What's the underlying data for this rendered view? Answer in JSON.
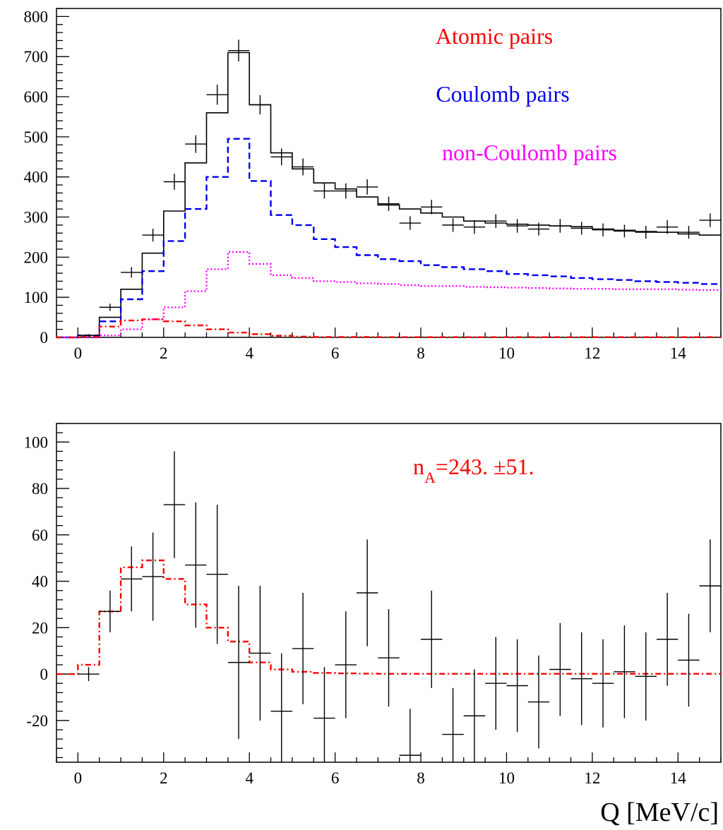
{
  "chart_data": [
    {
      "type": "histogram",
      "xlim": [
        -0.5,
        15
      ],
      "ylim": [
        0,
        820
      ],
      "xticks": [
        0,
        2,
        4,
        6,
        8,
        10,
        12,
        14
      ],
      "yticks": [
        0,
        100,
        200,
        300,
        400,
        500,
        600,
        700,
        800
      ],
      "grid": false,
      "legend_placement": "top-right",
      "bin_edges": [
        -0.5,
        0,
        0.5,
        1,
        1.5,
        2,
        2.5,
        3,
        3.5,
        4,
        4.5,
        5,
        5.5,
        6,
        6.5,
        7,
        7.5,
        8,
        8.5,
        9,
        9.5,
        10,
        10.5,
        11,
        11.5,
        12,
        12.5,
        13,
        13.5,
        14,
        14.5,
        15
      ],
      "series": [
        {
          "role": "total-fit",
          "color": "#000000",
          "style": "solid-step",
          "values": [
            0,
            5,
            50,
            120,
            210,
            315,
            435,
            560,
            710,
            580,
            460,
            420,
            385,
            370,
            350,
            330,
            320,
            310,
            300,
            290,
            285,
            282,
            280,
            278,
            276,
            270,
            267,
            264,
            262,
            258,
            255
          ]
        },
        {
          "name": "Coulomb pairs",
          "color": "#0000ee",
          "style": "dashed-step",
          "values": [
            0,
            5,
            40,
            95,
            165,
            240,
            320,
            400,
            495,
            390,
            305,
            280,
            245,
            225,
            205,
            195,
            190,
            180,
            175,
            170,
            165,
            158,
            155,
            152,
            148,
            145,
            143,
            140,
            138,
            136,
            133
          ]
        },
        {
          "name": "non-Coulomb pairs",
          "color": "#ff00ff",
          "style": "dotted-step",
          "values": [
            0,
            0,
            5,
            20,
            45,
            75,
            115,
            170,
            213,
            183,
            155,
            148,
            140,
            138,
            135,
            133,
            130,
            128,
            128,
            126,
            125,
            124,
            123,
            122,
            121,
            121,
            120,
            120,
            120,
            119,
            118
          ]
        },
        {
          "name": "Atomic pairs",
          "color": "#ff0000",
          "style": "dashdot-step",
          "values": [
            0,
            3,
            27,
            42,
            45,
            40,
            30,
            20,
            12,
            8,
            4,
            2,
            1,
            1,
            1,
            0.5,
            0.5,
            0.5,
            0.5,
            0.5,
            0.5,
            0.5,
            0.5,
            0.5,
            0.5,
            0.5,
            0.5,
            0.5,
            0.5,
            0.5,
            0.5
          ]
        }
      ],
      "data_points": {
        "color": "#000000",
        "x": [
          0.25,
          0.75,
          1.25,
          1.75,
          2.25,
          2.75,
          3.25,
          3.75,
          4.25,
          4.75,
          5.25,
          5.75,
          6.25,
          6.75,
          7.25,
          7.75,
          8.25,
          8.75,
          9.25,
          9.75,
          10.25,
          10.75,
          11.25,
          11.75,
          12.25,
          12.75,
          13.25,
          13.75,
          14.25,
          14.75
        ],
        "y": [
          5,
          75,
          162,
          255,
          388,
          482,
          605,
          715,
          580,
          450,
          425,
          365,
          365,
          375,
          333,
          285,
          325,
          280,
          275,
          290,
          278,
          270,
          278,
          272,
          268,
          265,
          262,
          275,
          262,
          292
        ],
        "err": [
          3,
          9,
          13,
          16,
          20,
          22,
          25,
          27,
          24,
          21,
          21,
          19,
          19,
          19,
          18,
          17,
          18,
          17,
          17,
          17,
          17,
          16,
          17,
          16,
          16,
          16,
          16,
          17,
          16,
          17
        ]
      }
    },
    {
      "type": "histogram",
      "xlim": [
        -0.5,
        15
      ],
      "ylim": [
        -38,
        108
      ],
      "xticks": [
        0,
        2,
        4,
        6,
        8,
        10,
        12,
        14
      ],
      "yticks": [
        -20,
        0,
        20,
        40,
        60,
        80,
        100
      ],
      "grid": false,
      "bin_edges": [
        -0.5,
        0,
        0.5,
        1,
        1.5,
        2,
        2.5,
        3,
        3.5,
        4,
        4.5,
        5,
        5.5,
        6,
        6.5,
        7,
        7.5,
        8,
        8.5,
        9,
        9.5,
        10,
        10.5,
        11,
        11.5,
        12,
        12.5,
        13,
        13.5,
        14,
        14.5,
        15
      ],
      "series": [
        {
          "role": "atomic-fit",
          "color": "#ff0000",
          "style": "dashdot-step",
          "values": [
            0,
            4,
            27,
            46,
            49,
            41,
            30,
            20,
            14,
            5,
            2,
            1,
            0.5,
            0.3,
            0.2,
            0.1,
            0.1,
            0.1,
            0.1,
            0.1,
            0.1,
            0.1,
            0.1,
            0.1,
            0.1,
            0.1,
            0.1,
            0.1,
            0.1,
            0.1,
            0.1
          ]
        }
      ],
      "data_points": {
        "color": "#000000",
        "x": [
          0.25,
          0.75,
          1.25,
          1.75,
          2.25,
          2.75,
          3.25,
          3.75,
          4.25,
          4.75,
          5.25,
          5.75,
          6.25,
          6.75,
          7.25,
          7.75,
          8.25,
          8.75,
          9.25,
          9.75,
          10.25,
          10.75,
          11.25,
          11.75,
          12.25,
          12.75,
          13.25,
          13.75,
          14.25,
          14.75
        ],
        "y": [
          0,
          27,
          41,
          42,
          73,
          47,
          43,
          5,
          9,
          -16,
          11,
          -19,
          4,
          35,
          7,
          -35,
          15,
          -26,
          -18,
          -4,
          -5,
          -12,
          2,
          -2,
          -4,
          1,
          -1,
          15,
          6,
          38
        ],
        "err": [
          3,
          9,
          14,
          19,
          23,
          27,
          30,
          33,
          29,
          25,
          24,
          22,
          23,
          23,
          21,
          20,
          21,
          20,
          20,
          20,
          20,
          20,
          20,
          20,
          19,
          20,
          19,
          20,
          20,
          20
        ]
      }
    }
  ],
  "legend": {
    "atomic": "Atomic pairs",
    "coulomb": "Coulomb pairs",
    "noncoulomb": "non-Coulomb pairs"
  },
  "annotation": {
    "prefix": "n",
    "subscript": "A",
    "value": "=243. ±51."
  },
  "xlabel": "Q [MeV/c]",
  "colors": {
    "atomic": "#ff0000",
    "coulomb": "#0000ee",
    "noncoulomb": "#ff00ff",
    "axes": "#000000"
  }
}
